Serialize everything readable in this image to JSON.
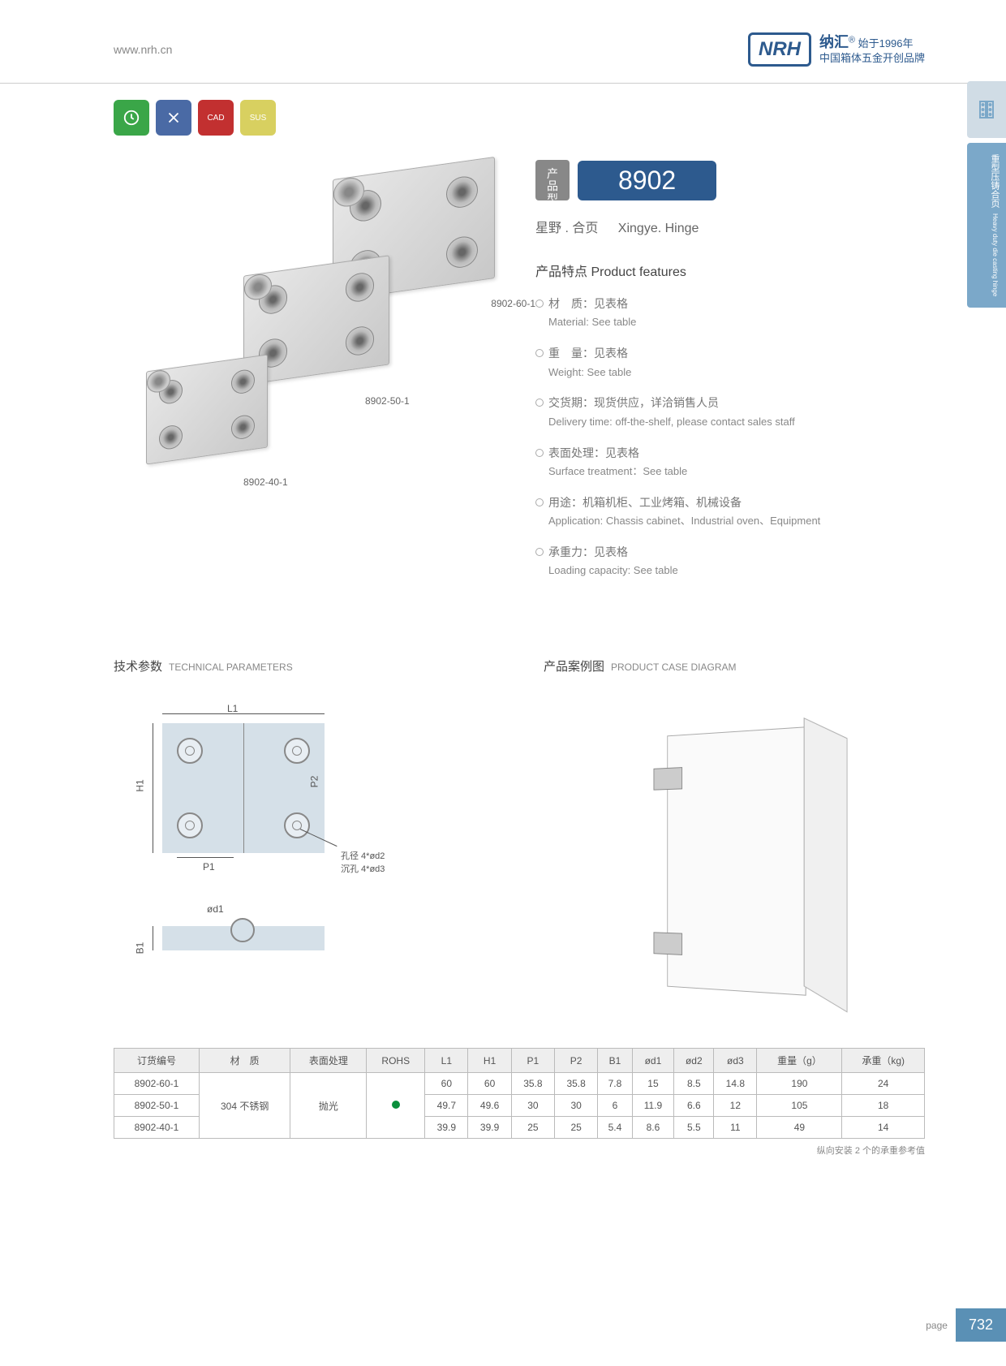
{
  "header": {
    "url": "www.nrh.cn",
    "brand_cn": "纳汇",
    "brand_year": "始于1996年",
    "brand_sub": "中国箱体五金开创品牌",
    "logo": "NRH"
  },
  "side": {
    "tab2": "重型压铸合页",
    "tab2_en": "Heavy duty die casting hinge"
  },
  "icons": {
    "c1": "#3aa648",
    "c2": "#4a6aa5",
    "c3": "#c23030",
    "c4": "#d8d060",
    "t3": "CAD",
    "t4": "SUS"
  },
  "model": {
    "label": "产品\n型号",
    "number": "8902",
    "sub_cn": "星野 . 合页",
    "sub_en": "Xingye. Hinge"
  },
  "features": {
    "title": "产品特点 Product features",
    "items": [
      {
        "cn": "材　质：见表格",
        "en": "Material: See table"
      },
      {
        "cn": "重　量：见表格",
        "en": "Weight: See table"
      },
      {
        "cn": "交货期：现货供应，详洽销售人员",
        "en": "Delivery time: off-the-shelf, please contact sales staff"
      },
      {
        "cn": "表面处理：见表格",
        "en": "Surface treatment：See table"
      },
      {
        "cn": "用途：机箱机柜、工业烤箱、机械设备",
        "en": "Application: Chassis cabinet、Industrial oven、Equipment"
      },
      {
        "cn": "承重力：见表格",
        "en": "Loading capacity: See table"
      }
    ]
  },
  "img_labels": {
    "l1": "8902-60-1",
    "l2": "8902-50-1",
    "l3": "8902-40-1"
  },
  "tech": {
    "title_cn": "技术参数",
    "title_en": "TECHNICAL PARAMETERS",
    "L1": "L1",
    "H1": "H1",
    "P1": "P1",
    "P2": "P2",
    "hole_note": "孔径 4*ød2\n沉孔 4*ød3",
    "od1": "ød1",
    "B1": "B1"
  },
  "case": {
    "title_cn": "产品案例图",
    "title_en": "PRODUCT CASE DIAGRAM"
  },
  "table": {
    "columns": [
      "订货编号",
      "材　质",
      "表面处理",
      "ROHS",
      "L1",
      "H1",
      "P1",
      "P2",
      "B1",
      "ød1",
      "ød2",
      "ød3",
      "重量（g）",
      "承重（kg)"
    ],
    "material": "304 不锈钢",
    "surface": "抛光",
    "rows": [
      [
        "8902-60-1",
        "60",
        "60",
        "35.8",
        "35.8",
        "7.8",
        "15",
        "8.5",
        "14.8",
        "190",
        "24"
      ],
      [
        "8902-50-1",
        "49.7",
        "49.6",
        "30",
        "30",
        "6",
        "11.9",
        "6.6",
        "12",
        "105",
        "18"
      ],
      [
        "8902-40-1",
        "39.9",
        "39.9",
        "25",
        "25",
        "5.4",
        "8.6",
        "5.5",
        "11",
        "49",
        "14"
      ]
    ],
    "note": "纵向安装 2 个的承重参考值"
  },
  "footer": {
    "label": "page",
    "num": "732"
  }
}
